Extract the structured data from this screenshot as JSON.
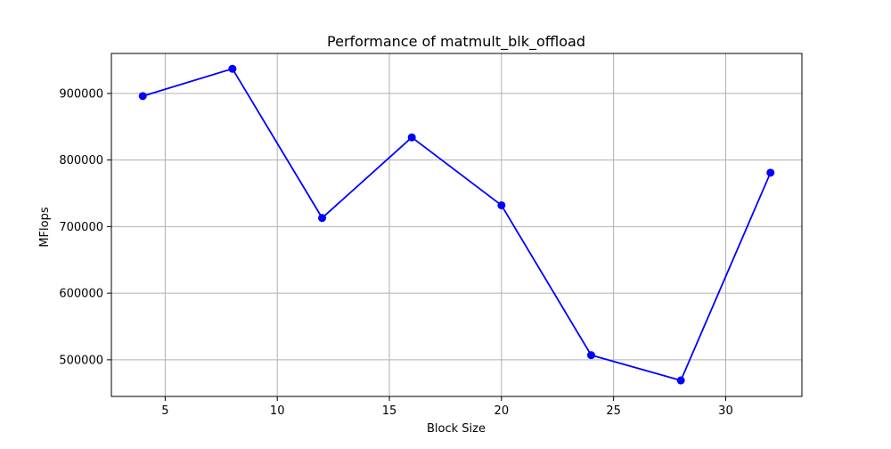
{
  "chart_data": {
    "type": "line",
    "title": "Performance of matmult_blk_offload",
    "xlabel": "Block Size",
    "ylabel": "MFlops",
    "x": [
      4,
      8,
      12,
      16,
      20,
      24,
      28,
      32
    ],
    "series": [
      {
        "values": [
          896000,
          937000,
          713000,
          834000,
          732000,
          507000,
          469000,
          781000
        ],
        "color": "#0000ff",
        "marker": "circle"
      }
    ],
    "xlim": [
      2.6,
      33.4
    ],
    "ylim": [
      445000,
      960000
    ],
    "xticks": [
      5,
      10,
      15,
      20,
      25,
      30
    ],
    "xtick_labels": [
      "5",
      "10",
      "15",
      "20",
      "25",
      "30"
    ],
    "yticks": [
      500000,
      600000,
      700000,
      800000,
      900000
    ],
    "ytick_labels": [
      "500000",
      "600000",
      "700000",
      "800000",
      "900000"
    ],
    "grid": true,
    "legend": "none"
  }
}
